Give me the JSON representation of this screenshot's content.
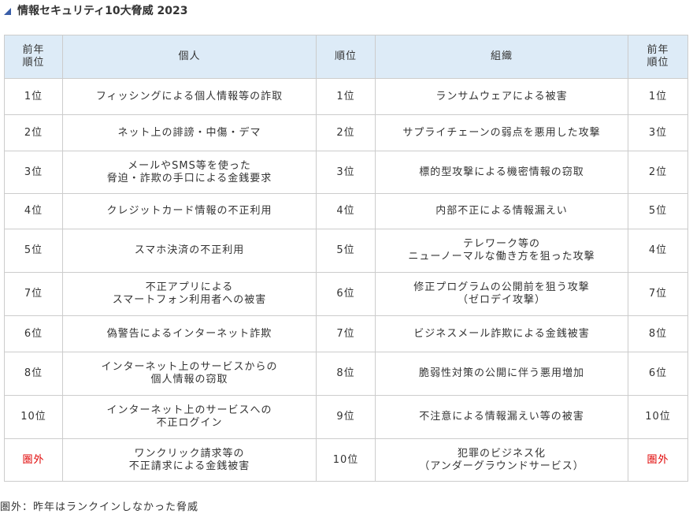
{
  "title": "情報セキュリティ10大脅威 2023",
  "icon": "triangle-marker-icon",
  "colors": {
    "header_bg": "#ddebf7",
    "out_of_rank": "#e00000",
    "border": "#cccccc"
  },
  "headers": {
    "prev_rank": "前年\n順位",
    "personal": "個人",
    "rank": "順位",
    "org": "組織",
    "prev_rank2": "前年\n順位"
  },
  "rows": [
    {
      "p_prev": "1位",
      "personal": "フィッシングによる個人情報等の詐取",
      "rank": "1位",
      "org": "ランサムウェアによる被害",
      "o_prev": "1位"
    },
    {
      "p_prev": "2位",
      "personal": "ネット上の誹謗・中傷・デマ",
      "rank": "2位",
      "org": "サプライチェーンの弱点を悪用した攻撃",
      "o_prev": "3位"
    },
    {
      "p_prev": "3位",
      "personal": "メールやSMS等を使った\n脅迫・詐欺の手口による金銭要求",
      "rank": "3位",
      "org": "標的型攻撃による機密情報の窃取",
      "o_prev": "2位"
    },
    {
      "p_prev": "4位",
      "personal": "クレジットカード情報の不正利用",
      "rank": "4位",
      "org": "内部不正による情報漏えい",
      "o_prev": "5位"
    },
    {
      "p_prev": "5位",
      "personal": "スマホ決済の不正利用",
      "rank": "5位",
      "org": "テレワーク等の\nニューノーマルな働き方を狙った攻撃",
      "o_prev": "4位"
    },
    {
      "p_prev": "7位",
      "personal": "不正アプリによる\nスマートフォン利用者への被害",
      "rank": "6位",
      "org": "修正プログラムの公開前を狙う攻撃\n（ゼロデイ攻撃）",
      "o_prev": "7位"
    },
    {
      "p_prev": "6位",
      "personal": "偽警告によるインターネット詐欺",
      "rank": "7位",
      "org": "ビジネスメール詐欺による金銭被害",
      "o_prev": "8位"
    },
    {
      "p_prev": "8位",
      "personal": "インターネット上のサービスからの\n個人情報の窃取",
      "rank": "8位",
      "org": "脆弱性対策の公開に伴う悪用増加",
      "o_prev": "6位"
    },
    {
      "p_prev": "10位",
      "personal": "インターネット上のサービスへの\n不正ログイン",
      "rank": "9位",
      "org": "不注意による情報漏えい等の被害",
      "o_prev": "10位"
    },
    {
      "p_prev": "圏外",
      "personal": "ワンクリック請求等の\n不正請求による金銭被害",
      "rank": "10位",
      "org": "犯罪のビジネス化\n（アンダーグラウンドサービス）",
      "o_prev": "圏外"
    }
  ],
  "note": "圏外：昨年はランクインしなかった脅威"
}
